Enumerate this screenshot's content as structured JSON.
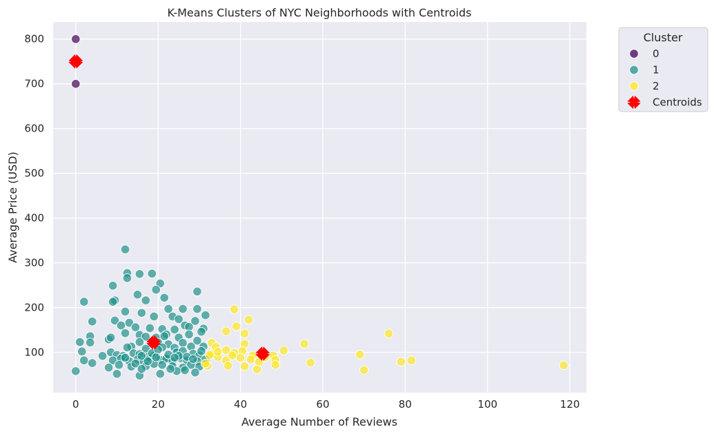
{
  "chart_data": {
    "type": "scatter",
    "title": "K-Means Clusters of NYC Neighborhoods with Centroids",
    "xlabel": "Average Number of Reviews",
    "ylabel": "Average Price (USD)",
    "xlim": [
      -5.5,
      124
    ],
    "ylim": [
      10,
      838
    ],
    "xticks": [
      0,
      20,
      40,
      60,
      80,
      100,
      120
    ],
    "yticks": [
      100,
      200,
      300,
      400,
      500,
      600,
      700,
      800
    ],
    "grid": true,
    "legend": {
      "title": "Cluster",
      "placement": "outside-right-top",
      "entries": [
        "0",
        "1",
        "2",
        "Centroids"
      ]
    },
    "colors": {
      "0": "#440154",
      "1": "#21918c",
      "2": "#fde725",
      "Centroids": "#ff0000",
      "background": "#eaeaf2",
      "grid": "#ffffff"
    },
    "series": [
      {
        "name": "0",
        "points": [
          [
            0,
            800
          ],
          [
            0,
            700
          ]
        ]
      },
      {
        "name": "1",
        "points": [
          [
            12,
            330
          ],
          [
            12.5,
            277
          ],
          [
            15.5,
            275
          ],
          [
            18.5,
            276
          ],
          [
            12.5,
            266
          ],
          [
            20.5,
            254
          ],
          [
            9,
            249
          ],
          [
            19.5,
            240
          ],
          [
            29.5,
            236
          ],
          [
            15,
            229
          ],
          [
            21.5,
            222
          ],
          [
            9.5,
            216
          ],
          [
            9,
            213
          ],
          [
            2,
            213
          ],
          [
            17,
            216
          ],
          [
            22.5,
            197
          ],
          [
            26,
            197
          ],
          [
            29.5,
            197
          ],
          [
            12,
            191
          ],
          [
            16,
            188
          ],
          [
            23.5,
            180
          ],
          [
            31.5,
            183
          ],
          [
            4,
            169
          ],
          [
            9.5,
            171
          ],
          [
            13,
            166
          ],
          [
            19,
            180
          ],
          [
            25,
            174
          ],
          [
            26.5,
            160
          ],
          [
            11,
            160
          ],
          [
            14.5,
            156
          ],
          [
            18,
            154
          ],
          [
            21,
            152
          ],
          [
            24,
            151
          ],
          [
            27.5,
            157
          ],
          [
            29,
            170
          ],
          [
            31,
            153
          ],
          [
            3.5,
            136
          ],
          [
            8,
            129
          ],
          [
            8.5,
            133
          ],
          [
            12,
            143
          ],
          [
            15.5,
            139
          ],
          [
            17,
            135
          ],
          [
            19.5,
            133
          ],
          [
            22,
            140
          ],
          [
            25,
            133
          ],
          [
            27.5,
            140
          ],
          [
            30.5,
            146
          ],
          [
            3.5,
            122
          ],
          [
            1,
            123
          ],
          [
            15.5,
            123
          ],
          [
            20,
            122
          ],
          [
            22.5,
            118
          ],
          [
            26,
            121
          ],
          [
            29.5,
            126
          ],
          [
            13.5,
            113
          ],
          [
            17,
            108
          ],
          [
            21,
            111
          ],
          [
            24,
            110
          ],
          [
            28,
            113
          ],
          [
            31,
            113
          ],
          [
            1.5,
            102
          ],
          [
            6.5,
            92
          ],
          [
            8.5,
            100
          ],
          [
            10,
            94
          ],
          [
            11.5,
            92
          ],
          [
            14,
            98
          ],
          [
            15.5,
            96
          ],
          [
            17.5,
            90
          ],
          [
            19,
            93
          ],
          [
            22,
            88
          ],
          [
            24.5,
            100
          ],
          [
            26,
            103
          ],
          [
            28.5,
            97
          ],
          [
            30,
            93
          ],
          [
            9,
            82
          ],
          [
            11,
            86
          ],
          [
            13,
            80
          ],
          [
            15,
            84
          ],
          [
            16.5,
            78
          ],
          [
            18,
            86
          ],
          [
            20.5,
            83
          ],
          [
            22,
            86
          ],
          [
            23.5,
            80
          ],
          [
            25.5,
            87
          ],
          [
            27,
            82
          ],
          [
            29.5,
            80
          ],
          [
            31.5,
            84
          ],
          [
            2,
            82
          ],
          [
            4,
            76
          ],
          [
            8,
            66
          ],
          [
            10.5,
            72
          ],
          [
            13.5,
            68
          ],
          [
            17,
            69
          ],
          [
            19,
            74
          ],
          [
            21,
            72
          ],
          [
            23.5,
            69
          ],
          [
            26,
            66
          ],
          [
            28,
            72
          ],
          [
            30,
            68
          ],
          [
            10,
            52
          ],
          [
            15.5,
            48
          ],
          [
            20.5,
            52
          ],
          [
            24.5,
            58
          ],
          [
            26.5,
            60
          ],
          [
            29,
            55
          ],
          [
            0,
            58
          ],
          [
            12,
            88
          ],
          [
            16,
            92
          ],
          [
            18.5,
            98
          ],
          [
            20,
            106
          ],
          [
            22.5,
            95
          ],
          [
            25,
            92
          ],
          [
            27,
            90
          ],
          [
            28.5,
            85
          ],
          [
            19.5,
            89
          ],
          [
            14.5,
            75
          ],
          [
            17.5,
            80
          ],
          [
            16,
            63
          ],
          [
            23,
            63
          ],
          [
            30.5,
            103
          ],
          [
            21.5,
            136
          ],
          [
            24,
            88
          ],
          [
            12.5,
            111
          ]
        ]
      },
      {
        "name": "2",
        "points": [
          [
            38.5,
            196
          ],
          [
            42,
            173
          ],
          [
            39,
            158
          ],
          [
            36.5,
            147
          ],
          [
            41,
            142
          ],
          [
            33,
            121
          ],
          [
            41,
            119
          ],
          [
            55.5,
            119
          ],
          [
            76,
            142
          ],
          [
            34,
            112
          ],
          [
            36.5,
            105
          ],
          [
            38.5,
            99
          ],
          [
            40.5,
            103
          ],
          [
            43,
            93
          ],
          [
            45.5,
            97
          ],
          [
            48,
            93
          ],
          [
            50.5,
            104
          ],
          [
            33,
            96
          ],
          [
            34.5,
            90
          ],
          [
            36.5,
            82
          ],
          [
            40,
            88
          ],
          [
            42.5,
            84
          ],
          [
            44.5,
            79
          ],
          [
            48.5,
            83
          ],
          [
            32,
            70
          ],
          [
            37,
            70
          ],
          [
            41,
            69
          ],
          [
            44,
            62
          ],
          [
            48.5,
            72
          ],
          [
            57,
            77
          ],
          [
            69,
            95
          ],
          [
            70,
            60
          ],
          [
            79,
            79
          ],
          [
            81.5,
            82
          ],
          [
            118.5,
            71
          ],
          [
            32.5,
            94
          ],
          [
            34.5,
            101
          ],
          [
            38,
            93
          ],
          [
            46,
            89
          ],
          [
            31.5,
            75
          ]
        ]
      }
    ],
    "centroids": {
      "name": "Centroids",
      "points": [
        [
          0,
          750
        ],
        [
          18.9,
          122
        ],
        [
          45.4,
          97
        ]
      ]
    }
  }
}
